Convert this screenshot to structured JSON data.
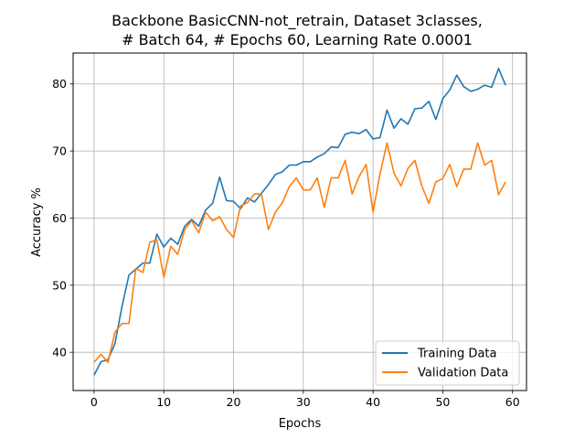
{
  "chart_data": {
    "type": "line",
    "title": [
      "Backbone BasicCNN-not_retrain, Dataset 3classes,",
      "# Batch 64, # Epochs 60, Learning Rate 0.0001"
    ],
    "xlabel": "Epochs",
    "ylabel": "Accuracy %",
    "xlim": [
      -3,
      62
    ],
    "ylim": [
      34.3,
      84.6
    ],
    "xticks": [
      0,
      10,
      20,
      30,
      40,
      50,
      60
    ],
    "yticks": [
      40,
      50,
      60,
      70,
      80
    ],
    "grid": true,
    "legend_position": "lower-right",
    "x": [
      0,
      1,
      2,
      3,
      4,
      5,
      6,
      7,
      8,
      9,
      10,
      11,
      12,
      13,
      14,
      15,
      16,
      17,
      18,
      19,
      20,
      21,
      22,
      23,
      24,
      25,
      26,
      27,
      28,
      29,
      30,
      31,
      32,
      33,
      34,
      35,
      36,
      37,
      38,
      39,
      40,
      41,
      42,
      43,
      44,
      45,
      46,
      47,
      48,
      49,
      50,
      51,
      52,
      53,
      54,
      55,
      56,
      57,
      58,
      59
    ],
    "series": [
      {
        "name": "Training Data",
        "color": "#1f77b4",
        "values": [
          36.6,
          38.6,
          38.9,
          41.3,
          46.8,
          51.5,
          52.4,
          53.3,
          53.3,
          57.6,
          55.7,
          57.0,
          56.1,
          58.8,
          59.8,
          58.8,
          61.2,
          62.2,
          66.1,
          62.6,
          62.5,
          61.4,
          63.0,
          62.4,
          63.7,
          65.0,
          66.5,
          66.9,
          67.9,
          67.9,
          68.4,
          68.4,
          69.1,
          69.6,
          70.6,
          70.5,
          72.5,
          72.8,
          72.6,
          73.2,
          71.8,
          72.0,
          76.1,
          73.4,
          74.8,
          74.0,
          76.3,
          76.4,
          77.4,
          74.7,
          77.8,
          79.1,
          81.3,
          79.6,
          78.9,
          79.2,
          79.8,
          79.5,
          82.3,
          79.8
        ]
      },
      {
        "name": "Validation Data",
        "color": "#ff7f0e",
        "values": [
          38.5,
          39.7,
          38.5,
          43.0,
          44.3,
          44.3,
          52.5,
          51.9,
          56.4,
          56.8,
          51.2,
          55.8,
          54.6,
          58.3,
          59.6,
          57.8,
          60.9,
          59.6,
          60.2,
          58.3,
          57.1,
          61.8,
          62.3,
          63.6,
          63.6,
          58.3,
          60.9,
          62.3,
          64.7,
          66.0,
          64.2,
          64.2,
          66.0,
          61.6,
          66.0,
          66.0,
          68.6,
          63.6,
          66.2,
          68.0,
          60.9,
          66.6,
          71.2,
          66.7,
          64.8,
          67.4,
          68.6,
          64.8,
          62.2,
          65.4,
          65.9,
          68.0,
          64.7,
          67.3,
          67.3,
          71.2,
          67.9,
          68.6,
          63.5,
          65.4
        ]
      }
    ]
  }
}
